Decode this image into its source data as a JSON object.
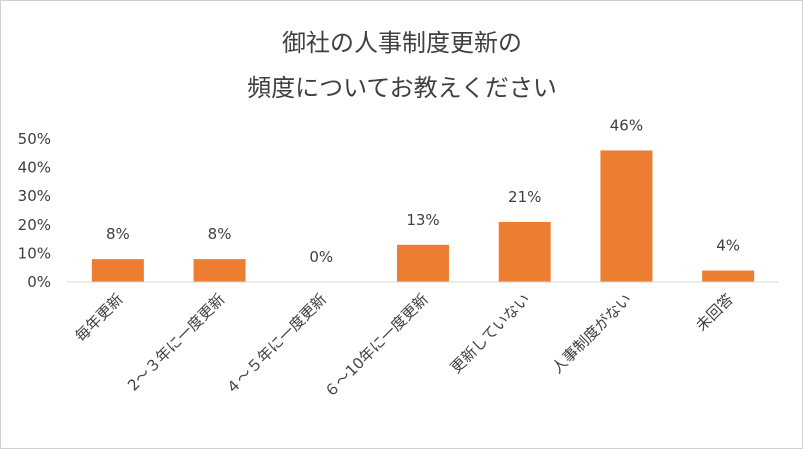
{
  "chart_data": {
    "type": "bar",
    "title_lines": [
      "御社の人事制度更新の",
      "頻度についてお教えください"
    ],
    "categories": [
      "毎年更新",
      "2～３年に一度更新",
      "４～５年に一度更新",
      "６～10年に一度更新",
      "更新していない",
      "人事制度がない",
      "未回答"
    ],
    "values": [
      8,
      8,
      0,
      13,
      21,
      46,
      4
    ],
    "data_labels": [
      "8%",
      "8%",
      "0%",
      "13%",
      "21%",
      "46%",
      "4%"
    ],
    "yticks": [
      "0%",
      "10%",
      "20%",
      "30%",
      "40%",
      "50%"
    ],
    "ylim": [
      0,
      50
    ],
    "grid": false,
    "legend": "none",
    "bar_color": "#ED7D31",
    "axis_color": "#d9d9d9"
  }
}
